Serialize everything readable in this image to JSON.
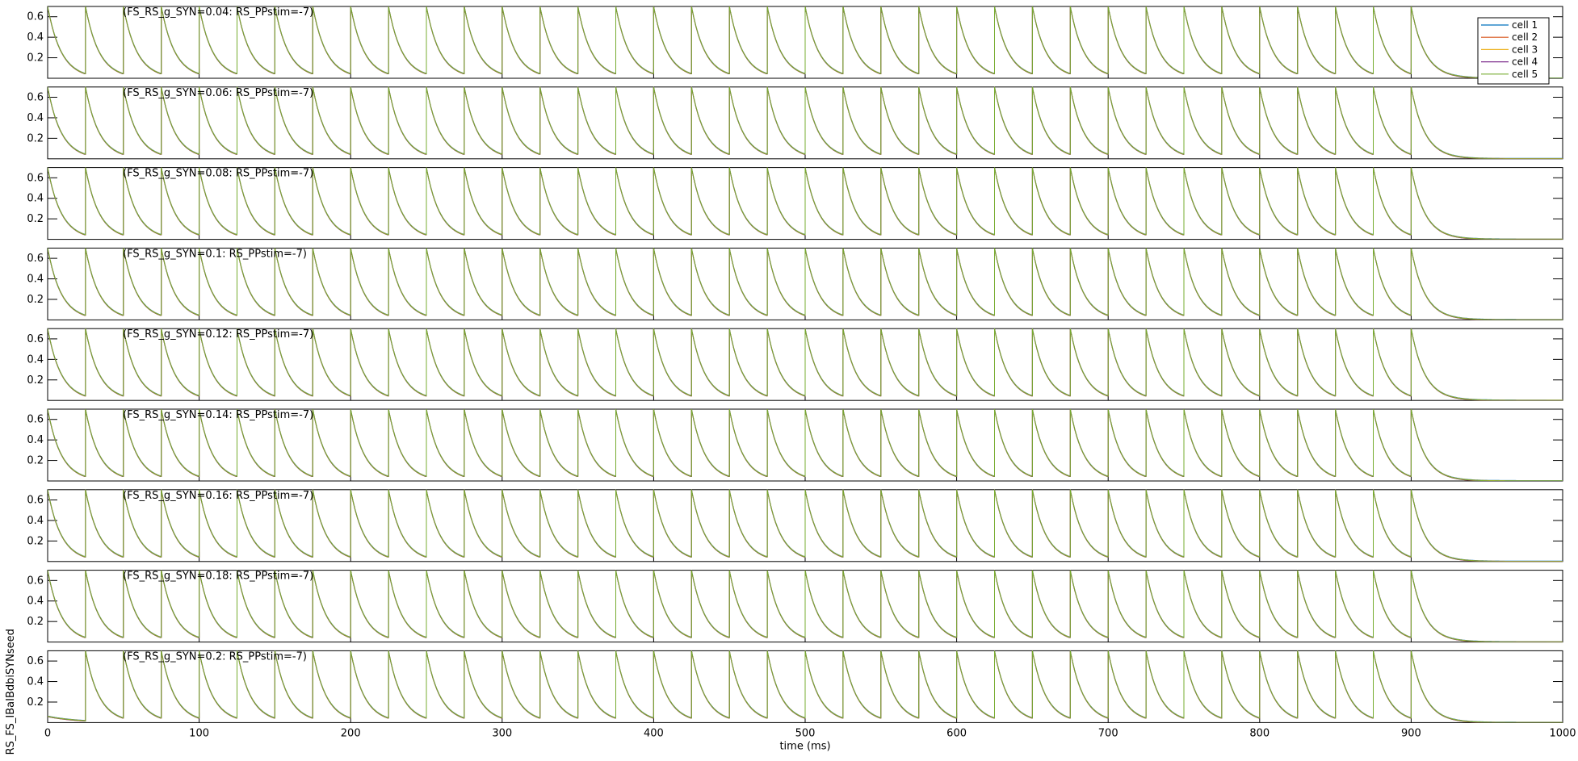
{
  "chart_data": {
    "type": "line",
    "xlabel": "time (ms)",
    "ylabel": "RS_FS_IBaIBdbiSYNseed",
    "xlim": [
      0,
      1000
    ],
    "x_ticks": [
      0,
      100,
      200,
      300,
      400,
      500,
      600,
      700,
      800,
      900,
      1000
    ],
    "ylim": [
      0,
      0.7
    ],
    "y_ticks": [
      0.2,
      0.4,
      0.6
    ],
    "grid": false,
    "legend_position": "top-right",
    "legend": [
      {
        "label": "cell 1",
        "color": "#0072BD"
      },
      {
        "label": "cell 2",
        "color": "#D95319"
      },
      {
        "label": "cell 3",
        "color": "#EDB120"
      },
      {
        "label": "cell 4",
        "color": "#7E2F8E"
      },
      {
        "label": "cell 5",
        "color": "#77AC30"
      }
    ],
    "pulse_period_ms": 25,
    "pulse_peak": 0.7,
    "decay_tau_ms": 9,
    "pulse_end_ms": 900,
    "panels": [
      {
        "title": "(FS_RS_g_SYN=0.04: RS_PPstim=-7)",
        "onset_ms": 0
      },
      {
        "title": "(FS_RS_g_SYN=0.06: RS_PPstim=-7)",
        "onset_ms": 0
      },
      {
        "title": "(FS_RS_g_SYN=0.08: RS_PPstim=-7)",
        "onset_ms": 0
      },
      {
        "title": "(FS_RS_g_SYN=0.1: RS_PPstim=-7)",
        "onset_ms": 0
      },
      {
        "title": "(FS_RS_g_SYN=0.12: RS_PPstim=-7)",
        "onset_ms": 0
      },
      {
        "title": "(FS_RS_g_SYN=0.14: RS_PPstim=-7)",
        "onset_ms": 0
      },
      {
        "title": "(FS_RS_g_SYN=0.16: RS_PPstim=-7)",
        "onset_ms": 0
      },
      {
        "title": "(FS_RS_g_SYN=0.18: RS_PPstim=-7)",
        "onset_ms": 0
      },
      {
        "title": "(FS_RS_g_SYN=0.2: RS_PPstim=-7)",
        "onset_ms": 25
      }
    ]
  }
}
